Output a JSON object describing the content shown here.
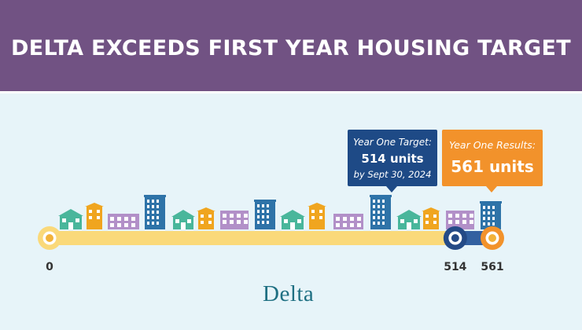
{
  "title": "DELTA EXCEEDS FIRST YEAR HOUSING TARGET",
  "logo": "Delta",
  "colors": {
    "banner": "#715283",
    "background": "#e7f4f9",
    "progress_bar": "#fad97a",
    "excess_bar": "#3260a0",
    "target_callout": "#1e4a86",
    "results_callout": "#f2922b",
    "logo": "#1e6f82"
  },
  "chart_data": {
    "type": "bar",
    "orientation": "horizontal",
    "xlim": [
      0,
      561
    ],
    "ticks": [
      "0",
      "514",
      "561"
    ],
    "tick_values": [
      0,
      514,
      561
    ],
    "segments": [
      {
        "from": 0,
        "to": 514,
        "color": "#fad97a"
      },
      {
        "from": 514,
        "to": 561,
        "color": "#3260a0"
      }
    ],
    "markers": [
      {
        "value": 0,
        "fill": "#fad97a"
      },
      {
        "value": 514,
        "fill": "#244a86"
      },
      {
        "value": 561,
        "fill": "#f2922b"
      }
    ],
    "callouts": [
      {
        "value": 514,
        "color": "#1e4a86",
        "lines": [
          "Year One Target:",
          "514 units",
          "by Sept 30, 2024"
        ]
      },
      {
        "value": 561,
        "color": "#f2922b",
        "lines": [
          "Year One Results:",
          "561 units"
        ]
      }
    ],
    "legend": "none",
    "grid": false
  }
}
